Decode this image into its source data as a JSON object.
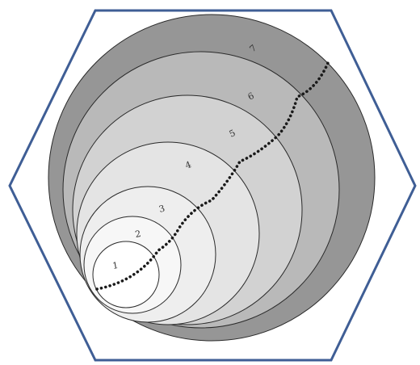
{
  "diagram": {
    "frame_color": "#3f5e95",
    "dot_color": "#1a1a1a",
    "outline_color": "#2a2a2a",
    "rings": [
      {
        "label": "1",
        "fill": "#ffffff"
      },
      {
        "label": "2",
        "fill": "#f7f7f7"
      },
      {
        "label": "3",
        "fill": "#eeeeee"
      },
      {
        "label": "4",
        "fill": "#e4e4e4"
      },
      {
        "label": "5",
        "fill": "#d2d2d2"
      },
      {
        "label": "6",
        "fill": "#b9b9b9"
      },
      {
        "label": "7",
        "fill": "#969696"
      }
    ]
  }
}
